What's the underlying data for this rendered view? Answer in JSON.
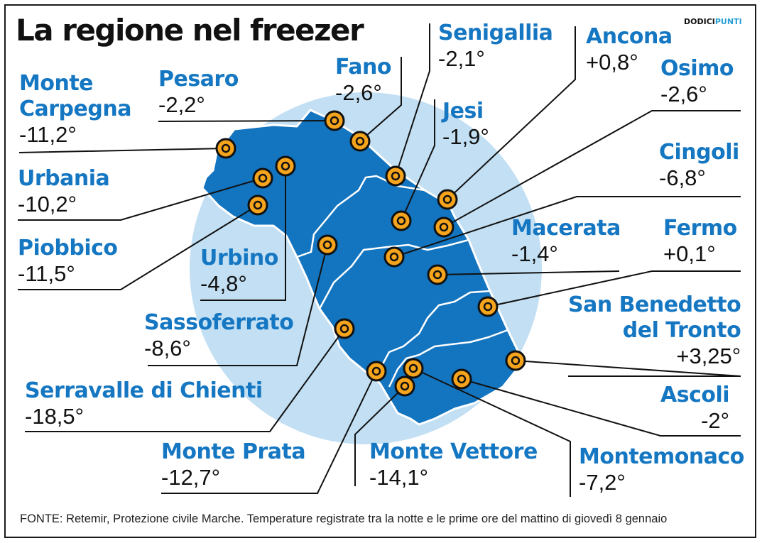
{
  "title": "La regione nel freezer",
  "brand": {
    "part1": "DODICI",
    "part2": "PUNTI"
  },
  "source": "FONTE: Retemir, Protezione civile Marche. Temperature registrate tra la notte e le prime ore del mattino di giovedì 8 gennaio",
  "colors": {
    "region_fill": "#1374bf",
    "halo": "#c2dff3",
    "marker_fill": "#f5a41c",
    "marker_ring": "#111111",
    "label_blue": "#1577c2"
  },
  "locations": [
    {
      "id": "monte-carpegna",
      "name_lines": [
        "Monte",
        "Carpegna"
      ],
      "temp": "-11,2°"
    },
    {
      "id": "pesaro",
      "name_lines": [
        "Pesaro"
      ],
      "temp": "-2,2°"
    },
    {
      "id": "fano",
      "name_lines": [
        "Fano"
      ],
      "temp": "-2,6°"
    },
    {
      "id": "senigallia",
      "name_lines": [
        "Senigallia"
      ],
      "temp": "-2,1°"
    },
    {
      "id": "ancona",
      "name_lines": [
        "Ancona"
      ],
      "temp": "+0,8°"
    },
    {
      "id": "osimo",
      "name_lines": [
        "Osimo"
      ],
      "temp": "-2,6°"
    },
    {
      "id": "jesi",
      "name_lines": [
        "Jesi"
      ],
      "temp": "-1,9°"
    },
    {
      "id": "cingoli",
      "name_lines": [
        "Cingoli"
      ],
      "temp": "-6,8°"
    },
    {
      "id": "urbania",
      "name_lines": [
        "Urbania"
      ],
      "temp": "-10,2°"
    },
    {
      "id": "piobbico",
      "name_lines": [
        "Piobbico"
      ],
      "temp": "-11,5°"
    },
    {
      "id": "urbino",
      "name_lines": [
        "Urbino"
      ],
      "temp": "-4,8°"
    },
    {
      "id": "macerata",
      "name_lines": [
        "Macerata"
      ],
      "temp": "-1,4°"
    },
    {
      "id": "fermo",
      "name_lines": [
        "Fermo"
      ],
      "temp": "+0,1°"
    },
    {
      "id": "sassoferrato",
      "name_lines": [
        "Sassoferrato"
      ],
      "temp": "-8,6°"
    },
    {
      "id": "san-benedetto",
      "name_lines": [
        "San Benedetto",
        "del Tronto"
      ],
      "temp": "+3,25°"
    },
    {
      "id": "serravalle",
      "name_lines": [
        "Serravalle di Chienti"
      ],
      "temp": "-18,5°"
    },
    {
      "id": "ascoli",
      "name_lines": [
        "Ascoli"
      ],
      "temp": "-2°"
    },
    {
      "id": "monte-prata",
      "name_lines": [
        "Monte Prata"
      ],
      "temp": "-12,7°"
    },
    {
      "id": "monte-vettore",
      "name_lines": [
        "Monte Vettore"
      ],
      "temp": "-14,1°"
    },
    {
      "id": "montemonaco",
      "name_lines": [
        "Montemonaco"
      ],
      "temp": "-7,2°"
    }
  ]
}
